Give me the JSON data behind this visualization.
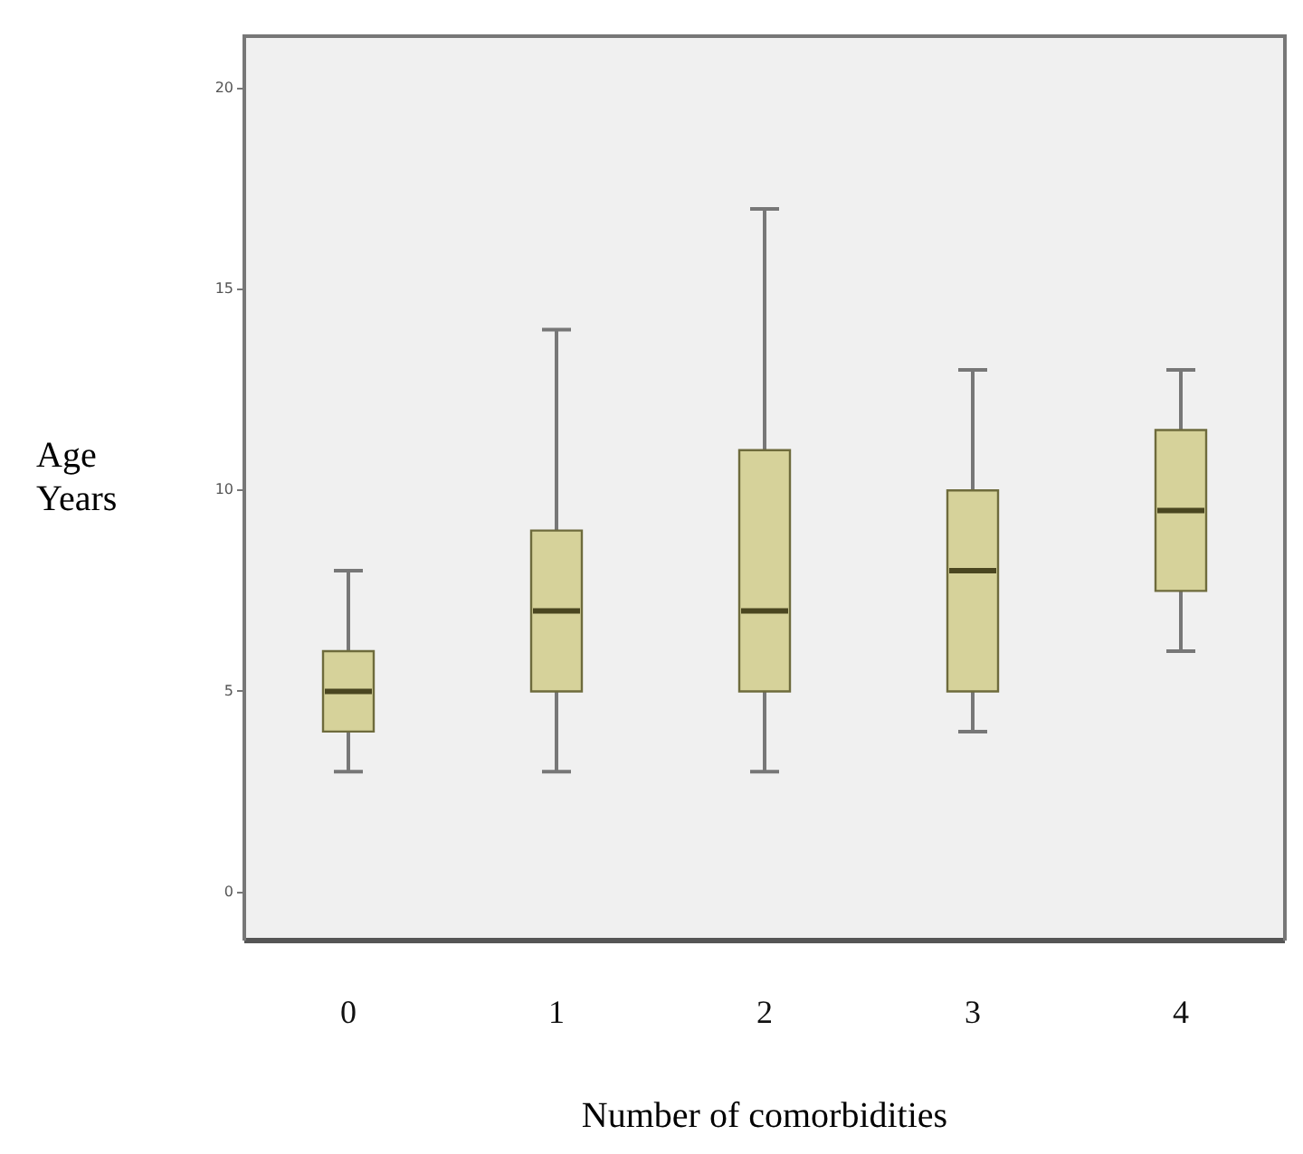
{
  "chart_data": {
    "type": "box",
    "xlabel": "Number of comorbidities",
    "ylabel": "Age Years",
    "categories": [
      "0",
      "1",
      "2",
      "3",
      "4"
    ],
    "color": "#d6d29a",
    "boxes": [
      {
        "low": 3,
        "q1": 4,
        "median": 5,
        "q3": 6,
        "high": 8
      },
      {
        "low": 3,
        "q1": 5,
        "median": 7,
        "q3": 9,
        "high": 14
      },
      {
        "low": 3,
        "q1": 5,
        "median": 7,
        "q3": 11,
        "high": 17
      },
      {
        "low": 4,
        "q1": 5,
        "median": 8,
        "q3": 10,
        "high": 13
      },
      {
        "low": 6,
        "q1": 7.5,
        "median": 9.5,
        "q3": 11.5,
        "high": 13
      }
    ],
    "ylim": [
      -1.2,
      21.3
    ],
    "yticks": [
      0,
      5,
      10,
      15,
      20
    ],
    "grid": false
  }
}
